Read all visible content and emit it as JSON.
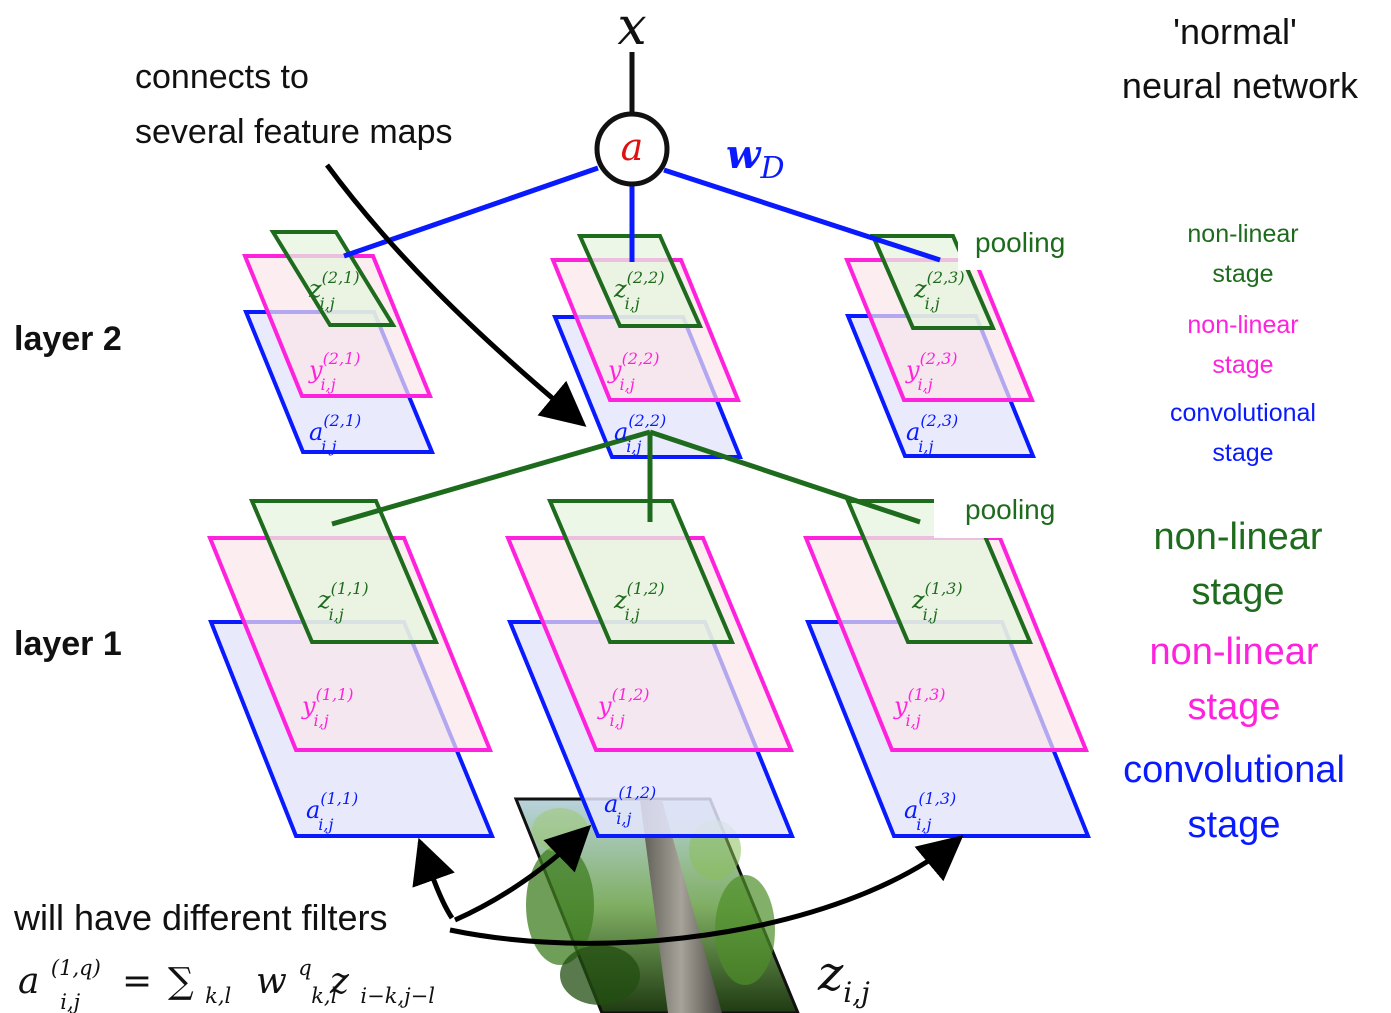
{
  "top_variable": "x",
  "neuron_label": "a",
  "weight_label": {
    "base": "w",
    "sub": "D"
  },
  "normal_net_label": [
    "'normal'",
    "neural network"
  ],
  "connects_label": [
    "connects to",
    "several feature maps"
  ],
  "layer_labels": [
    "layer 2",
    "layer 1"
  ],
  "pooling_label": "pooling",
  "stage_labels": {
    "layer2": [
      "non-linear",
      "stage",
      "non-linear",
      "stage",
      "convolutional",
      "stage"
    ],
    "layer1": [
      "non-linear",
      "stage",
      "non-linear",
      "stage",
      "convolutional",
      "stage"
    ]
  },
  "map_labels": {
    "layer2": [
      {
        "z": "z",
        "y": "y",
        "a": "a",
        "sup": "(2,1)",
        "sub": "i,j"
      },
      {
        "z": "z",
        "y": "y",
        "a": "a",
        "sup": "(2,2)",
        "sub": "i,j"
      },
      {
        "z": "z",
        "y": "y",
        "a": "a",
        "sup": "(2,3)",
        "sub": "i,j"
      }
    ],
    "layer1": [
      {
        "z": "z",
        "y": "y",
        "a": "a",
        "sup": "(1,1)",
        "sub": "i,j"
      },
      {
        "z": "z",
        "y": "y",
        "a": "a",
        "sup": "(1,2)",
        "sub": "i,j"
      },
      {
        "z": "z",
        "y": "y",
        "a": "a",
        "sup": "(1,3)",
        "sub": "i,j"
      }
    ]
  },
  "filters_label": "will have different filters",
  "formula": {
    "lhs": "a",
    "lhs_sup": "(1,q)",
    "lhs_sub": "i,j",
    "eq": "=",
    "sum": "∑",
    "sum_sub": "k,l",
    "w": "w",
    "w_sup": "q",
    "w_sub": "k,l",
    "z": "z",
    "z_sub": "i−k,j−l"
  },
  "input_label": {
    "base": "z",
    "sub": "i,j"
  },
  "colors": {
    "green": "#1e6b1e",
    "magenta": "#ff22dd",
    "blue": "#0a1aff",
    "neuron_red": "#e01010",
    "green_fill": "#e6f4df",
    "magenta_fill": "#fbe6ea",
    "blue_fill": "#e4e6fb"
  }
}
